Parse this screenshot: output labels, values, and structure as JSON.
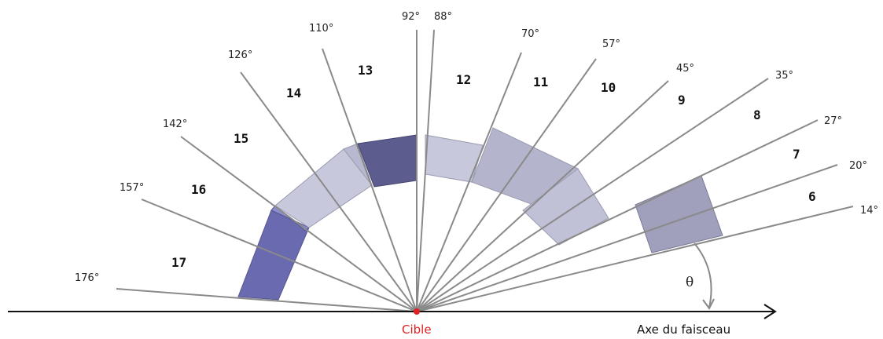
{
  "diagram": {
    "angles": [
      {
        "deg": 14,
        "label": "14°"
      },
      {
        "deg": 20,
        "label": "20°"
      },
      {
        "deg": 27,
        "label": "27°"
      },
      {
        "deg": 35,
        "label": "35°"
      },
      {
        "deg": 45,
        "label": "45°"
      },
      {
        "deg": 57,
        "label": "57°"
      },
      {
        "deg": 70,
        "label": "70°"
      },
      {
        "deg": 88,
        "label": "88°"
      },
      {
        "deg": 92,
        "label": "92°"
      },
      {
        "deg": 110,
        "label": "110°"
      },
      {
        "deg": 126,
        "label": "126°"
      },
      {
        "deg": 142,
        "label": "142°"
      },
      {
        "deg": 157,
        "label": "157°"
      },
      {
        "deg": 176,
        "label": "176°"
      }
    ],
    "sectors": [
      {
        "label": "6"
      },
      {
        "label": "7"
      },
      {
        "label": "8"
      },
      {
        "label": "9"
      },
      {
        "label": "10"
      },
      {
        "label": "11"
      },
      {
        "label": "12"
      },
      {
        "label": "13"
      },
      {
        "label": "14"
      },
      {
        "label": "15"
      },
      {
        "label": "16"
      },
      {
        "label": "17"
      }
    ],
    "target_label": "Cible",
    "axis_label": "Axe du faisceau",
    "angle_symbol": "θ",
    "colors": {
      "line": "#8a8a8a",
      "axis": "#111111",
      "target": "#e02020",
      "block_light": "#c8c8dc",
      "block_mid": "#a8a8c0",
      "block_dark": "#5a5a8c",
      "block_blue": "#6a6ab0"
    }
  }
}
